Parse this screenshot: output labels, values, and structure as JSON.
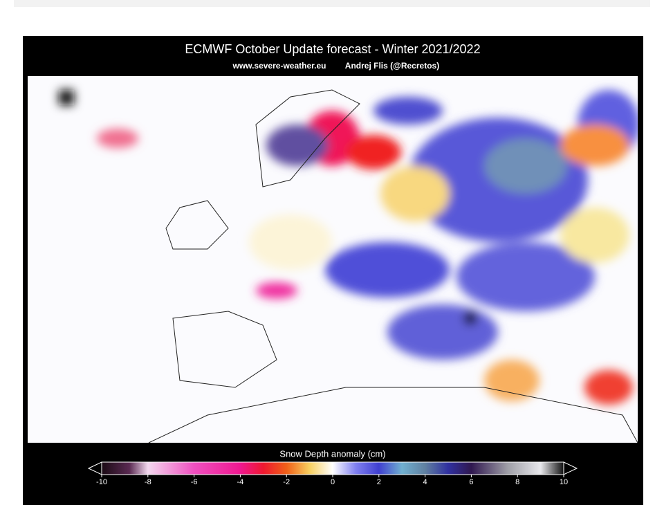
{
  "header": {
    "title": "ECMWF October Update forecast - Winter 2021/2022",
    "site": "www.severe-weather.eu",
    "author": "Andrej Flis (@Recretos)"
  },
  "colorbar": {
    "label": "Snow Depth anomaly (cm)",
    "range": [
      -10,
      10
    ],
    "ticks": [
      -10,
      -8,
      -6,
      -4,
      -2,
      0,
      2,
      4,
      6,
      8,
      10
    ]
  }
}
